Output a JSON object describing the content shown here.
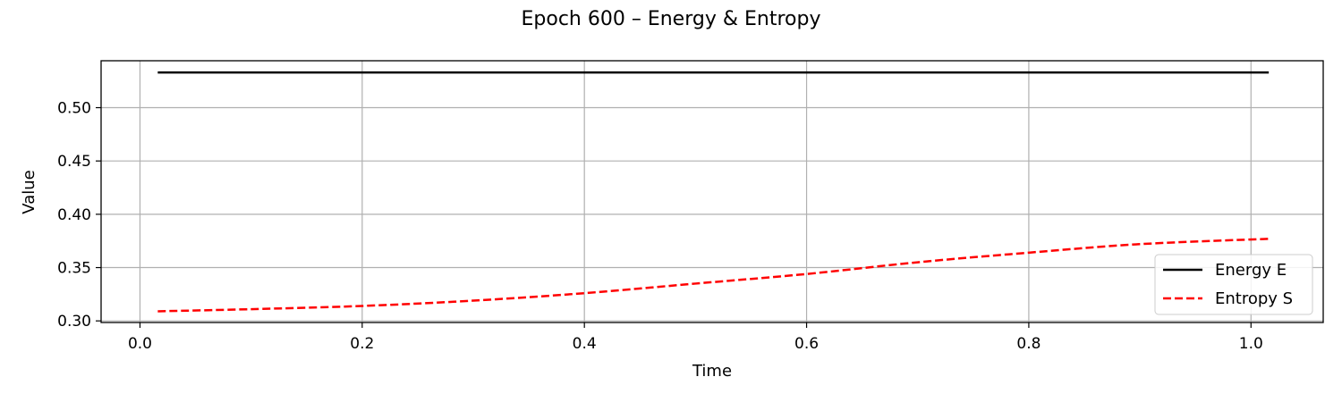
{
  "chart_data": {
    "type": "line",
    "title": "Epoch 600 – Energy & Entropy",
    "xlabel": "Time",
    "ylabel": "Value",
    "xlim": [
      -0.035,
      1.065
    ],
    "ylim": [
      0.2985,
      0.544
    ],
    "xticks": [
      0.0,
      0.2,
      0.4,
      0.6,
      0.8,
      1.0
    ],
    "xtick_labels": [
      "0.0",
      "0.2",
      "0.4",
      "0.6",
      "0.8",
      "1.0"
    ],
    "yticks": [
      0.3,
      0.35,
      0.4,
      0.45,
      0.5
    ],
    "ytick_labels": [
      "0.30",
      "0.35",
      "0.40",
      "0.45",
      "0.50"
    ],
    "grid": true,
    "legend_position": "lower-right",
    "x": [
      0.016,
      0.1,
      0.2,
      0.3,
      0.4,
      0.5,
      0.6,
      0.7,
      0.8,
      0.9,
      1.016
    ],
    "series": [
      {
        "name": "Energy E",
        "color": "#000000",
        "style": "solid",
        "values": [
          0.533,
          0.533,
          0.533,
          0.533,
          0.533,
          0.533,
          0.533,
          0.533,
          0.533,
          0.533,
          0.533
        ]
      },
      {
        "name": "Entropy S",
        "color": "#ff0000",
        "style": "dashed",
        "values": [
          0.309,
          0.311,
          0.314,
          0.319,
          0.326,
          0.335,
          0.344,
          0.355,
          0.364,
          0.372,
          0.377
        ]
      }
    ]
  }
}
